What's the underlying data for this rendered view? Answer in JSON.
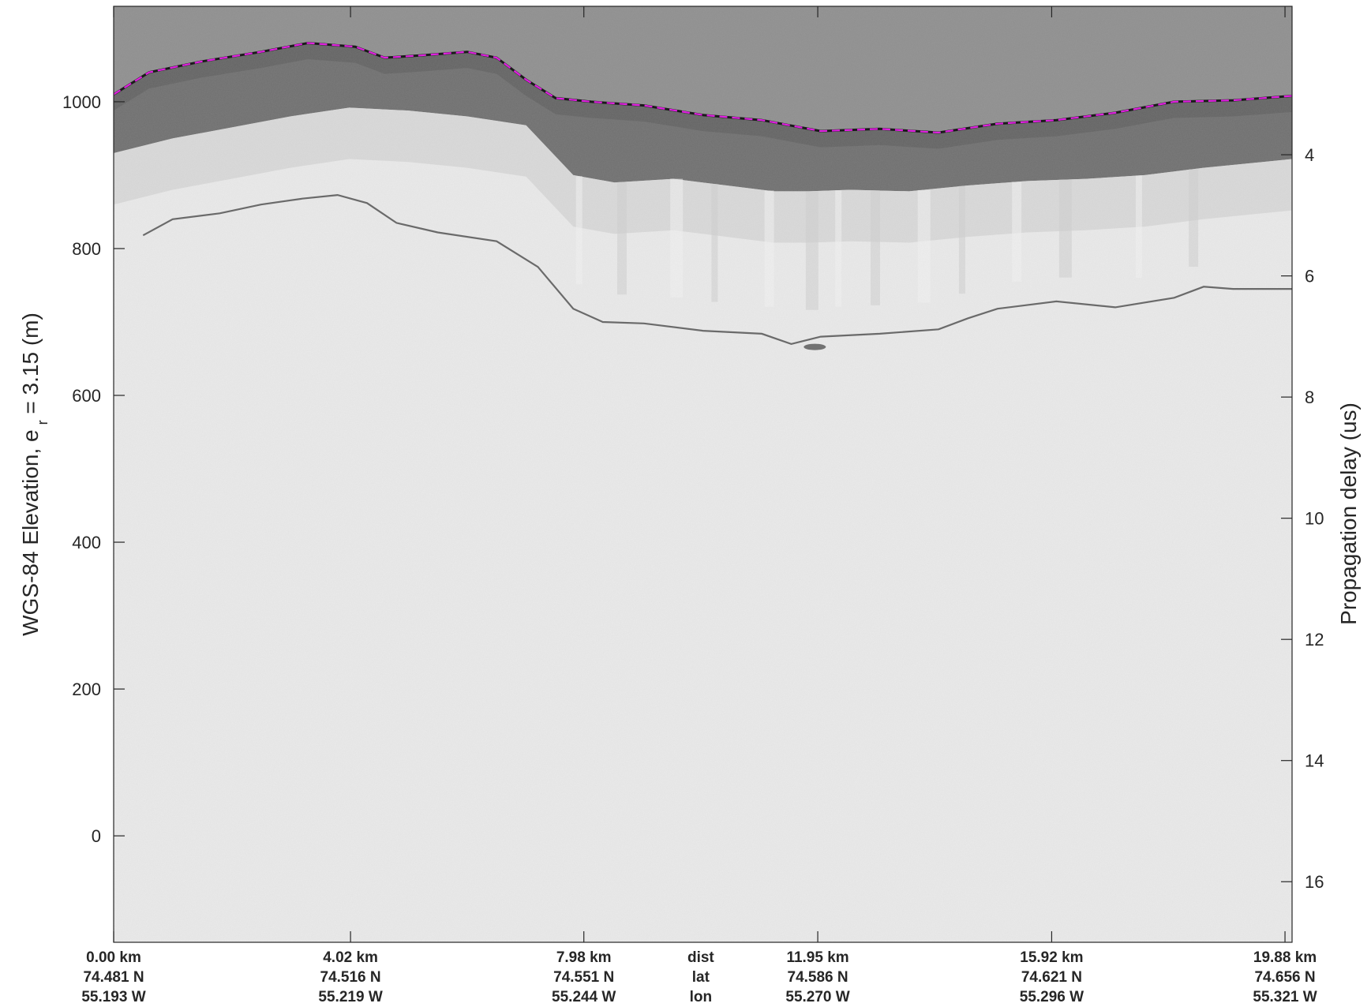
{
  "chart_data": {
    "type": "heatmap",
    "description_kind": "radar echogram",
    "ylabel_main": "WGS-84 Elevation, e",
    "ylabel_sub": "r",
    "ylabel_tail": " = 3.15 (m)",
    "y2label": "Propagation delay (us)",
    "ylim": [
      -145,
      1130
    ],
    "yticks": [
      0,
      200,
      400,
      600,
      800,
      1000
    ],
    "y2lim": [
      1.55,
      17.0
    ],
    "y2ticks": [
      4,
      6,
      8,
      10,
      12,
      14,
      16
    ],
    "xlim_km": [
      0,
      20.0
    ],
    "xtick_km": [
      0,
      4.02,
      7.98,
      11.95,
      15.92,
      19.88
    ],
    "bottom_rows": [
      {
        "name": "dist",
        "labels": [
          "0.00 km",
          "4.02 km",
          "7.98 km",
          "11.95 km",
          "15.92 km",
          "19.88 km"
        ]
      },
      {
        "name": "lat",
        "labels": [
          "74.481 N",
          "74.516 N",
          "74.551 N",
          "74.586 N",
          "74.621 N",
          "74.656 N"
        ]
      },
      {
        "name": "lon",
        "labels": [
          "55.193 W",
          "55.219 W",
          "55.244 W",
          "55.270 W",
          "55.296 W",
          "55.321 W"
        ]
      }
    ],
    "surface_line": {
      "name": "Surface",
      "color": "#e020e0",
      "x": [
        0,
        0.6,
        1.5,
        2.5,
        3.3,
        4.1,
        4.6,
        5.2,
        6.0,
        6.5,
        7.0,
        7.5,
        8.1,
        9.0,
        10.0,
        11.0,
        12.0,
        13.0,
        14.0,
        15.0,
        16.0,
        17.0,
        18.0,
        19.0,
        20.0
      ],
      "y": [
        1010,
        1040,
        1055,
        1068,
        1080,
        1075,
        1060,
        1063,
        1068,
        1060,
        1030,
        1005,
        1000,
        995,
        982,
        975,
        960,
        963,
        958,
        970,
        975,
        985,
        1000,
        1002,
        1008
      ]
    },
    "bed_line": {
      "name": "Bed",
      "x": [
        0.5,
        1.0,
        1.8,
        2.5,
        3.2,
        3.8,
        4.3,
        4.8,
        5.5,
        6.5,
        7.2,
        7.8,
        8.3,
        9.0,
        10.0,
        11.0,
        11.5,
        12.0,
        13.0,
        14.0,
        14.5,
        15.0,
        16.0,
        17.0,
        18.0,
        18.5,
        19.0,
        20.0
      ],
      "y": [
        818,
        840,
        848,
        860,
        868,
        873,
        862,
        835,
        822,
        810,
        775,
        718,
        700,
        698,
        688,
        684,
        670,
        680,
        684,
        690,
        705,
        718,
        728,
        720,
        733,
        748,
        745,
        745
      ]
    },
    "firn_base": {
      "x": [
        0,
        1,
        2,
        3,
        4,
        5,
        6,
        7,
        7.8,
        8.5,
        9.5,
        10.5,
        11.2,
        11.8,
        12.5,
        13.5,
        14.5,
        15.5,
        16.5,
        17.5,
        18.5,
        19.5,
        20.0
      ],
      "y": [
        930,
        950,
        965,
        980,
        992,
        988,
        980,
        968,
        900,
        890,
        895,
        885,
        878,
        878,
        880,
        878,
        886,
        892,
        895,
        900,
        910,
        918,
        922
      ]
    }
  }
}
